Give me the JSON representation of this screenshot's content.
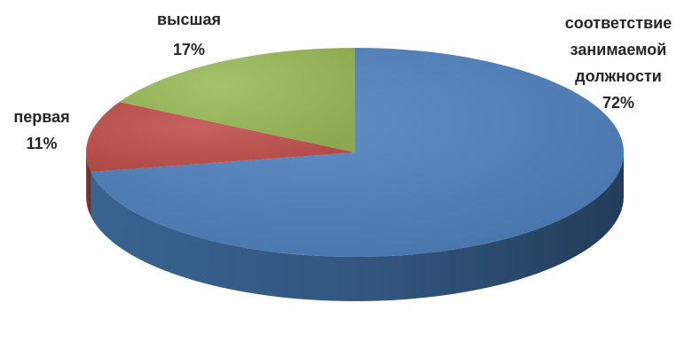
{
  "chart_data": {
    "type": "pie",
    "style": "3d",
    "start_angle_deg": 90,
    "direction": "clockwise",
    "slices": [
      {
        "label_lines": [
          "соответствие",
          "занимаемой",
          "должности"
        ],
        "value": 72,
        "value_label": "72%",
        "color": "#4F81BD",
        "side_color": "#3C6899"
      },
      {
        "label_lines": [
          "первая"
        ],
        "value": 11,
        "value_label": "11%",
        "color": "#C0504D",
        "side_color": "#983E3C"
      },
      {
        "label_lines": [
          "высшая"
        ],
        "value": 17,
        "value_label": "17%",
        "color": "#9BBB59",
        "side_color": "#7A9645"
      }
    ]
  }
}
